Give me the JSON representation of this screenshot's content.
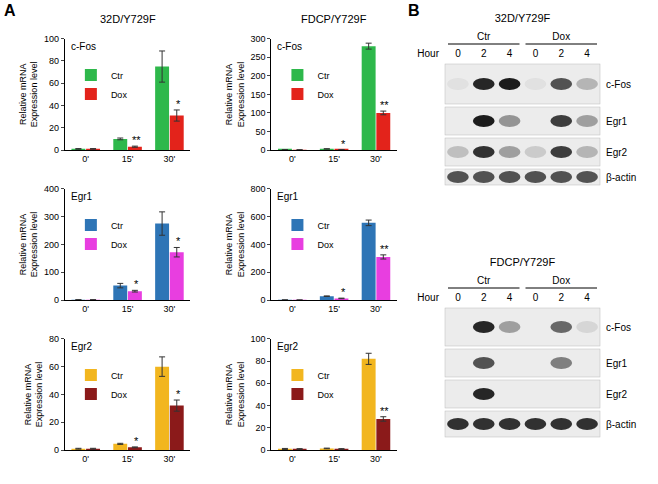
{
  "panel_labels": [
    "A",
    "B"
  ],
  "chart_data": [
    {
      "type": "bar",
      "title": "32D/Y729F",
      "subtitle": "c-Fos",
      "categories": [
        "0'",
        "15'",
        "30'"
      ],
      "series": [
        {
          "name": "Ctr",
          "color": "#2eb84b",
          "values": [
            1,
            10,
            75
          ],
          "errors": [
            0.3,
            0.8,
            14
          ]
        },
        {
          "name": "Dox",
          "color": "#e3231b",
          "values": [
            1,
            3,
            31
          ],
          "errors": [
            0.3,
            0.5,
            5
          ]
        }
      ],
      "ylabel": "Relative mRNA\nExpression level",
      "ylim": [
        0,
        100
      ],
      "yticks": [
        0,
        20,
        40,
        60,
        80,
        100
      ],
      "annotations": [
        {
          "category": "15'",
          "text": "**"
        },
        {
          "category": "30'",
          "text": "*"
        }
      ],
      "legend": "upper left"
    },
    {
      "type": "bar",
      "title": "FDCP/Y729F",
      "subtitle": "c-Fos",
      "categories": [
        "0'",
        "15'",
        "30'"
      ],
      "series": [
        {
          "name": "Ctr",
          "color": "#2eb84b",
          "values": [
            1,
            3,
            280
          ],
          "errors": [
            0.2,
            0.5,
            8
          ]
        },
        {
          "name": "Dox",
          "color": "#e3231b",
          "values": [
            0.5,
            1,
            100
          ],
          "errors": [
            0.2,
            0.3,
            5
          ]
        }
      ],
      "ylabel": "Relative mRNA\nExpression level",
      "ylim": [
        0,
        300
      ],
      "yticks": [
        0,
        50,
        100,
        150,
        200,
        250,
        300
      ],
      "annotations": [
        {
          "category": "15'",
          "text": "*"
        },
        {
          "category": "30'",
          "text": "**"
        }
      ],
      "legend": "upper left"
    },
    {
      "type": "bar",
      "subtitle": "Egr1",
      "categories": [
        "0'",
        "15'",
        "30'"
      ],
      "series": [
        {
          "name": "Ctr",
          "color": "#2e75b6",
          "values": [
            1,
            52,
            275
          ],
          "errors": [
            0.3,
            8,
            42
          ]
        },
        {
          "name": "Dox",
          "color": "#e83ee0",
          "values": [
            1,
            32,
            172
          ],
          "errors": [
            0.3,
            3,
            17
          ]
        }
      ],
      "ylabel": "Relative mRNA\nExpression level",
      "ylim": [
        0,
        400
      ],
      "yticks": [
        0,
        100,
        200,
        300,
        400
      ],
      "annotations": [
        {
          "category": "15'",
          "text": "*"
        },
        {
          "category": "30'",
          "text": "*"
        }
      ],
      "legend": "upper left"
    },
    {
      "type": "bar",
      "subtitle": "Egr1",
      "categories": [
        "0'",
        "15'",
        "30'"
      ],
      "series": [
        {
          "name": "Ctr",
          "color": "#2e75b6",
          "values": [
            1,
            28,
            555
          ],
          "errors": [
            0.2,
            2,
            20
          ]
        },
        {
          "name": "Dox",
          "color": "#e83ee0",
          "values": [
            0.5,
            12,
            310
          ],
          "errors": [
            0.2,
            2,
            15
          ]
        }
      ],
      "ylabel": "Relative mRNA\nExpression level",
      "ylim": [
        0,
        800
      ],
      "yticks": [
        0,
        200,
        400,
        600,
        800
      ],
      "annotations": [
        {
          "category": "15'",
          "text": "*"
        },
        {
          "category": "30'",
          "text": "**"
        }
      ],
      "legend": "upper left"
    },
    {
      "type": "bar",
      "subtitle": "Egr2",
      "categories": [
        "0'",
        "15'",
        "30'"
      ],
      "series": [
        {
          "name": "Ctr",
          "color": "#f2b61f",
          "values": [
            1,
            4.5,
            60
          ],
          "errors": [
            0.3,
            0.4,
            7
          ]
        },
        {
          "name": "Dox",
          "color": "#8b1a1a",
          "values": [
            1,
            2,
            32
          ],
          "errors": [
            0.3,
            0.3,
            4
          ]
        }
      ],
      "ylabel": "Relative mRNA\nExpression level",
      "ylim": [
        0,
        80
      ],
      "yticks": [
        0,
        20,
        40,
        60,
        80
      ],
      "annotations": [
        {
          "category": "15'",
          "text": "*"
        },
        {
          "category": "30'",
          "text": "*"
        }
      ],
      "legend": "upper left"
    },
    {
      "type": "bar",
      "subtitle": "Egr2",
      "categories": [
        "0'",
        "15'",
        "30'"
      ],
      "series": [
        {
          "name": "Ctr",
          "color": "#f2b61f",
          "values": [
            1,
            1.5,
            82
          ],
          "errors": [
            0.5,
            0.3,
            5
          ]
        },
        {
          "name": "Dox",
          "color": "#8b1a1a",
          "values": [
            1,
            1,
            28
          ],
          "errors": [
            0.3,
            0.3,
            2
          ]
        }
      ],
      "ylabel": "Relative mRNA\nExpression level",
      "ylim": [
        0,
        100
      ],
      "yticks": [
        0,
        20,
        40,
        60,
        80,
        100
      ],
      "annotations": [
        {
          "category": "30'",
          "text": "**"
        }
      ],
      "legend": "upper left"
    }
  ],
  "blots": [
    {
      "title": "32D/Y729F",
      "groups": [
        "Ctr",
        "Dox"
      ],
      "hour_label": "Hour",
      "hours": [
        0,
        2,
        4,
        0,
        2,
        4
      ],
      "rows": [
        {
          "name": "c-Fos",
          "bands": [
            0.05,
            0.9,
            0.95,
            0.05,
            0.7,
            0.25
          ]
        },
        {
          "name": "Egr1",
          "bands": [
            0,
            0.95,
            0.4,
            0,
            0.8,
            0.35
          ]
        },
        {
          "name": "Egr2",
          "bands": [
            0.2,
            0.85,
            0.35,
            0.15,
            0.8,
            0.25
          ]
        },
        {
          "name": "β-actin",
          "bands": [
            0.7,
            0.7,
            0.7,
            0.7,
            0.7,
            0.7
          ]
        }
      ]
    },
    {
      "title": "FDCP/Y729F",
      "groups": [
        "Ctr",
        "Dox"
      ],
      "hour_label": "Hour",
      "hours": [
        0,
        2,
        4,
        0,
        2,
        4
      ],
      "rows": [
        {
          "name": "c-Fos",
          "bands": [
            0,
            0.9,
            0.35,
            0,
            0.6,
            0.1
          ]
        },
        {
          "name": "Egr1",
          "bands": [
            0,
            0.7,
            0,
            0,
            0.5,
            0
          ]
        },
        {
          "name": "Egr2",
          "bands": [
            0,
            0.9,
            0,
            0,
            0,
            0
          ]
        },
        {
          "name": "β-actin",
          "bands": [
            0.85,
            0.85,
            0.85,
            0.85,
            0.85,
            0.85
          ]
        }
      ]
    }
  ]
}
